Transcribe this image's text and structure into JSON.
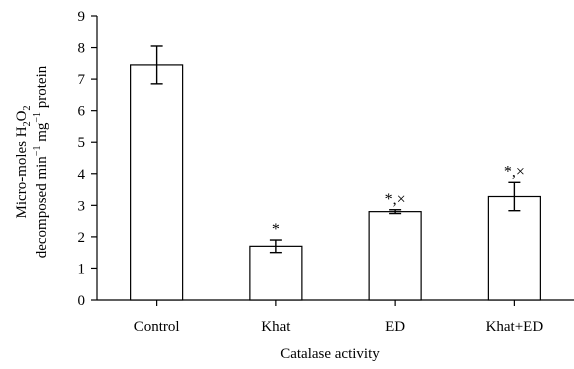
{
  "chart_data": {
    "type": "bar",
    "title": "",
    "xlabel": "Catalase activity",
    "ylabel_line1": "Micro-moles H2O2",
    "ylabel_line2": "decomposed min−1 mg−1 protein",
    "ylim": [
      0,
      9
    ],
    "yticks": [
      "0",
      "1",
      "2",
      "3",
      "4",
      "5",
      "6",
      "7",
      "8",
      "9"
    ],
    "categories": [
      "Control",
      "Khat",
      "ED",
      "Khat+ED"
    ],
    "values": [
      7.45,
      1.7,
      2.8,
      3.28
    ],
    "errors": [
      0.6,
      0.2,
      0.06,
      0.45
    ],
    "significance": [
      "",
      "*",
      "*,×",
      "*,×"
    ],
    "grid": false,
    "legend": false
  }
}
